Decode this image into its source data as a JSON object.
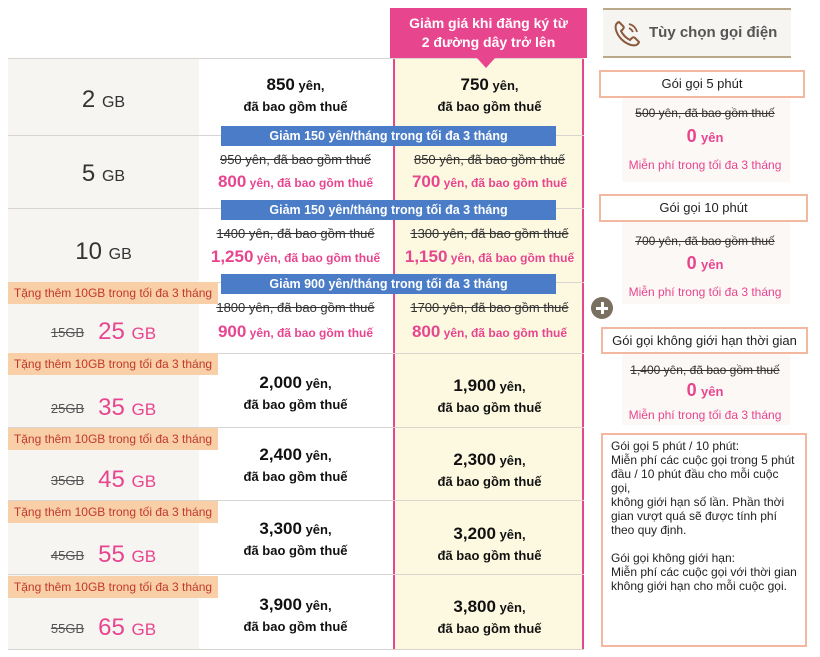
{
  "header": {
    "discount_title_line1": "Giảm giá khi đăng ký từ",
    "discount_title_line2": "2 đường dây trở lên",
    "call_options_title": "Tùy chọn gọi điện"
  },
  "common": {
    "yen": "yên,",
    "tax_incl": "đã bao gồm thuế",
    "yen_short": "yên,"
  },
  "plans": [
    {
      "gb_num": "2",
      "gb_unit": "GB",
      "price": "850",
      "disc_price": "750"
    },
    {
      "gb_num": "5",
      "gb_unit": "GB",
      "banner": "Giảm 150 yên/tháng trong tối đa 3 tháng",
      "old_price": "950 yên, đã bao gồm thuế",
      "promo_price": "800",
      "disc_old_price": "850 yên, đã bao gồm thuế",
      "disc_promo_price": "700"
    },
    {
      "gb_num": "10",
      "gb_unit": "GB",
      "banner": "Giảm 150 yên/tháng trong tối đa 3 tháng",
      "old_price": "1400 yên, đã bao gồm thuế",
      "promo_price": "1,250",
      "disc_old_price": "1300 yên, đã bao gồm thuế",
      "disc_promo_price": "1,150"
    },
    {
      "bonus_tag": "Tặng thêm 10GB trong tối đa 3 tháng",
      "old_gb": "15GB",
      "gb_num": "25",
      "gb_unit": "GB",
      "banner": "Giảm 900 yên/tháng trong tối đa 3 tháng",
      "old_price": "1800 yên, đã bao gồm thuế",
      "promo_price": "900",
      "disc_old_price": "1700 yên, đã bao gồm thuế",
      "disc_promo_price": "800"
    },
    {
      "bonus_tag": "Tặng thêm 10GB trong tối đa 3 tháng",
      "old_gb": "25GB",
      "gb_num": "35",
      "gb_unit": "GB",
      "price": "2,000",
      "disc_price": "1,900"
    },
    {
      "bonus_tag": "Tặng thêm 10GB trong tối đa 3 tháng",
      "old_gb": "35GB",
      "gb_num": "45",
      "gb_unit": "GB",
      "price": "2,400",
      "disc_price": "2,300"
    },
    {
      "bonus_tag": "Tặng thêm 10GB trong tối đa 3 tháng",
      "old_gb": "45GB",
      "gb_num": "55",
      "gb_unit": "GB",
      "price": "3,300",
      "disc_price": "3,200"
    },
    {
      "bonus_tag": "Tặng thêm 10GB trong tối đa 3 tháng",
      "old_gb": "55GB",
      "gb_num": "65",
      "gb_unit": "GB",
      "price": "3,900",
      "disc_price": "3,800"
    }
  ],
  "call_options": [
    {
      "name": "Gói gọi 5 phút",
      "old_price": "500 yên, đã bao gồm thuế",
      "new_price": "0",
      "yen": "yên",
      "free": "Miễn phí trong tối đa 3 tháng"
    },
    {
      "name": "Gói gọi 10 phút",
      "old_price": "700 yên, đã bao gồm thuế",
      "new_price": "0",
      "yen": "yên",
      "free": "Miễn phí trong tối đa 3 tháng"
    },
    {
      "name": "Gói gọi không giới hạn thời gian",
      "old_price": "1,400 yên, đã bao gồm thuế",
      "new_price": "0",
      "yen": "yên",
      "free": "Miễn phí trong tối đa 3 tháng"
    }
  ],
  "notes": {
    "line1": "Gói gọi 5 phút / 10 phút:",
    "line2": "Miễn phí các cuộc gọi trong 5 phút đầu / 10 phút đầu cho mỗi cuộc gọi,",
    "line3": "không giới hạn số lần. Phần thời gian vượt quá sẽ được tính phí theo quy định.",
    "line4": "Gói gọi không giới hạn:",
    "line5": "Miễn phí các cuộc gọi với thời gian không giới hạn cho mỗi cuộc gọi."
  },
  "colors": {
    "accent_pink": "#e8458f",
    "banner_blue": "#4a7cc7",
    "bonus_orange": "#f9cfa7",
    "discount_bg": "#fdf9e0"
  },
  "icons": {
    "phone": "phone-icon",
    "plus": "plus-icon"
  }
}
